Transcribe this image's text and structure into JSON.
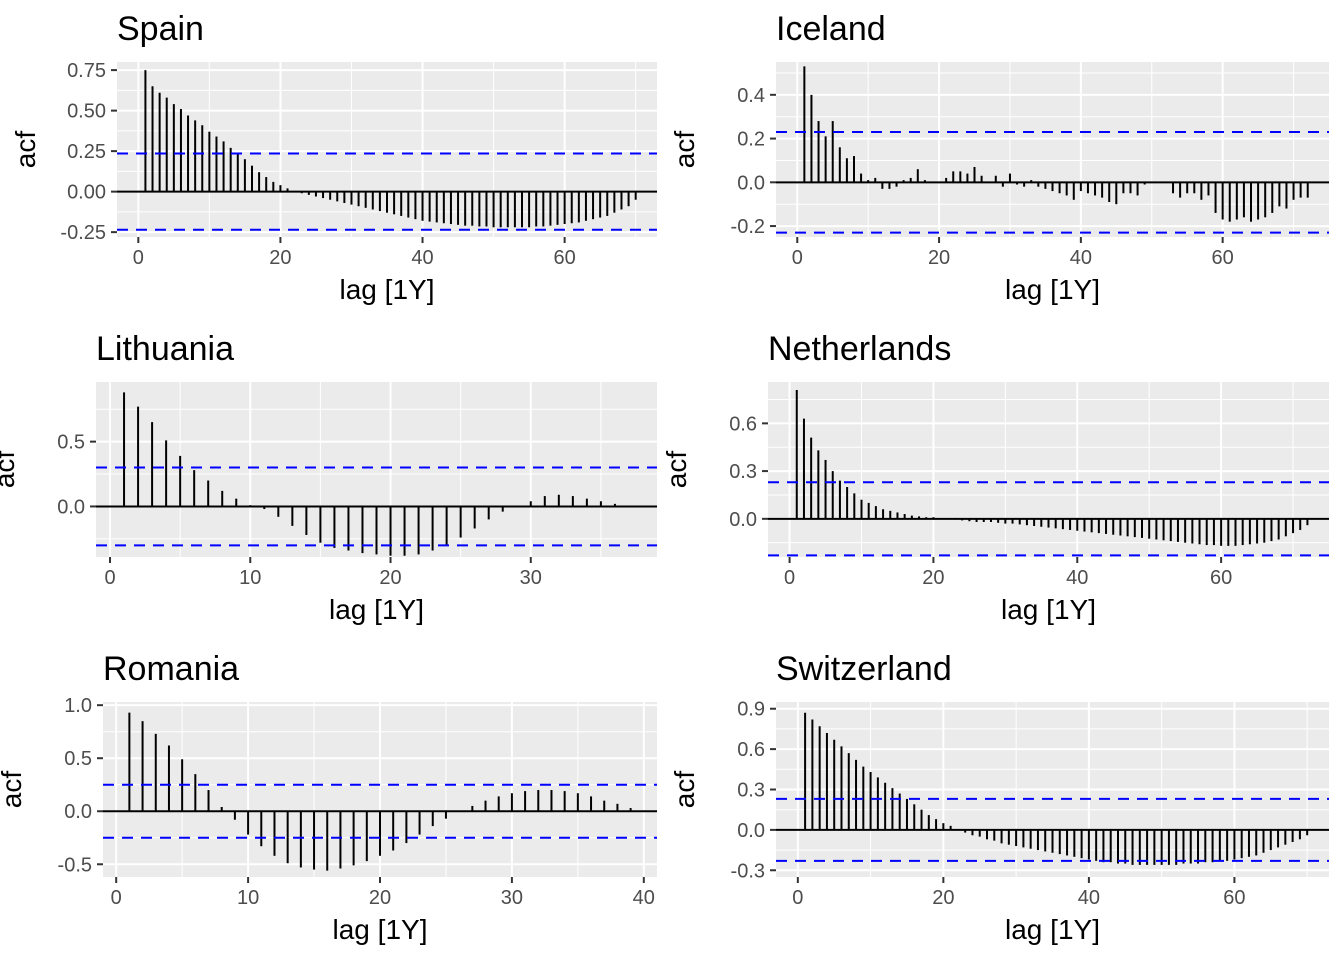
{
  "chart_data": [
    {
      "type": "bar",
      "title": "Spain",
      "xlabel": "lag [1Y]",
      "ylabel": "acf",
      "xlim": [
        -3,
        73
      ],
      "ylim": [
        -0.28,
        0.8
      ],
      "xticks": [
        0,
        20,
        40,
        60
      ],
      "yticks": [
        -0.25,
        0,
        0.25,
        0.5,
        0.75
      ],
      "ytick_labels": [
        "-0.25",
        "0.00",
        "0.25",
        "0.50",
        "0.75"
      ],
      "conf_limit": 0.235,
      "lags": [
        1,
        2,
        3,
        4,
        5,
        6,
        7,
        8,
        9,
        10,
        11,
        12,
        13,
        14,
        15,
        16,
        17,
        18,
        19,
        20,
        21,
        22,
        23,
        24,
        25,
        26,
        27,
        28,
        29,
        30,
        31,
        32,
        33,
        34,
        35,
        36,
        37,
        38,
        39,
        40,
        41,
        42,
        43,
        44,
        45,
        46,
        47,
        48,
        49,
        50,
        51,
        52,
        53,
        54,
        55,
        56,
        57,
        58,
        59,
        60,
        61,
        62,
        63,
        64,
        65,
        66,
        67,
        68,
        69,
        70
      ],
      "values": [
        0.75,
        0.65,
        0.61,
        0.58,
        0.54,
        0.51,
        0.47,
        0.44,
        0.41,
        0.37,
        0.34,
        0.31,
        0.27,
        0.24,
        0.2,
        0.16,
        0.12,
        0.09,
        0.06,
        0.04,
        0.02,
        0.0,
        -0.01,
        -0.02,
        -0.03,
        -0.04,
        -0.05,
        -0.06,
        -0.07,
        -0.08,
        -0.09,
        -0.1,
        -0.11,
        -0.12,
        -0.13,
        -0.14,
        -0.15,
        -0.16,
        -0.17,
        -0.18,
        -0.185,
        -0.19,
        -0.195,
        -0.2,
        -0.205,
        -0.21,
        -0.21,
        -0.215,
        -0.215,
        -0.22,
        -0.22,
        -0.22,
        -0.22,
        -0.22,
        -0.22,
        -0.215,
        -0.215,
        -0.21,
        -0.205,
        -0.2,
        -0.195,
        -0.19,
        -0.18,
        -0.17,
        -0.16,
        -0.15,
        -0.13,
        -0.11,
        -0.09,
        -0.05
      ]
    },
    {
      "type": "bar",
      "title": "Iceland",
      "xlabel": "lag [1Y]",
      "ylabel": "acf",
      "xlim": [
        -3,
        75
      ],
      "ylim": [
        -0.25,
        0.55
      ],
      "xticks": [
        0,
        20,
        40,
        60
      ],
      "yticks": [
        -0.2,
        0,
        0.2,
        0.4
      ],
      "ytick_labels": [
        "-0.2",
        "0.0",
        "0.2",
        "0.4"
      ],
      "conf_limit": 0.23,
      "lags": [
        1,
        2,
        3,
        4,
        5,
        6,
        7,
        8,
        9,
        10,
        11,
        12,
        13,
        14,
        15,
        16,
        17,
        18,
        19,
        20,
        21,
        22,
        23,
        24,
        25,
        26,
        27,
        28,
        29,
        30,
        31,
        32,
        33,
        34,
        35,
        36,
        37,
        38,
        39,
        40,
        41,
        42,
        43,
        44,
        45,
        46,
        47,
        48,
        49,
        50,
        51,
        52,
        53,
        54,
        55,
        56,
        57,
        58,
        59,
        60,
        61,
        62,
        63,
        64,
        65,
        66,
        67,
        68,
        69,
        70,
        71,
        72
      ],
      "values": [
        0.53,
        0.4,
        0.28,
        0.21,
        0.28,
        0.16,
        0.11,
        0.12,
        0.04,
        0.01,
        0.02,
        -0.03,
        -0.03,
        -0.02,
        0.01,
        0.02,
        0.06,
        0.01,
        0.0,
        0.0,
        0.02,
        0.05,
        0.05,
        0.04,
        0.07,
        0.03,
        0.0,
        0.03,
        -0.02,
        0.04,
        -0.01,
        -0.02,
        0.01,
        -0.02,
        -0.03,
        -0.04,
        -0.05,
        -0.06,
        -0.08,
        -0.04,
        -0.05,
        -0.06,
        -0.07,
        -0.09,
        -0.1,
        -0.05,
        -0.05,
        -0.06,
        -0.01,
        0.0,
        0.0,
        0.0,
        -0.05,
        -0.07,
        -0.05,
        -0.05,
        -0.08,
        -0.06,
        -0.14,
        -0.17,
        -0.18,
        -0.17,
        -0.16,
        -0.18,
        -0.17,
        -0.16,
        -0.14,
        -0.11,
        -0.12,
        -0.08,
        -0.07,
        -0.07
      ]
    },
    {
      "type": "bar",
      "title": "Lithuania",
      "xlabel": "lag [1Y]",
      "ylabel": "acf",
      "xlim": [
        -1,
        39
      ],
      "ylim": [
        -0.39,
        0.96
      ],
      "xticks": [
        0,
        10,
        20,
        30
      ],
      "yticks": [
        0,
        0.5
      ],
      "ytick_labels": [
        "0.0",
        "0.5"
      ],
      "conf_limit": 0.3,
      "lags": [
        1,
        2,
        3,
        4,
        5,
        6,
        7,
        8,
        9,
        10,
        11,
        12,
        13,
        14,
        15,
        16,
        17,
        18,
        19,
        20,
        21,
        22,
        23,
        24,
        25,
        26,
        27,
        28,
        29,
        30,
        31,
        32,
        33,
        34,
        35,
        36
      ],
      "values": [
        0.88,
        0.77,
        0.65,
        0.51,
        0.39,
        0.28,
        0.2,
        0.12,
        0.06,
        0.01,
        -0.02,
        -0.08,
        -0.15,
        -0.22,
        -0.28,
        -0.32,
        -0.34,
        -0.36,
        -0.37,
        -0.38,
        -0.38,
        -0.37,
        -0.34,
        -0.3,
        -0.24,
        -0.17,
        -0.1,
        -0.04,
        0.0,
        0.04,
        0.08,
        0.09,
        0.08,
        0.06,
        0.04,
        0.02
      ]
    },
    {
      "type": "bar",
      "title": "Netherlands",
      "xlabel": "lag [1Y]",
      "ylabel": "acf",
      "xlim": [
        -3,
        75
      ],
      "ylim": [
        -0.24,
        0.86
      ],
      "xticks": [
        0,
        20,
        40,
        60
      ],
      "yticks": [
        0,
        0.3,
        0.6
      ],
      "ytick_labels": [
        "0.0",
        "0.3",
        "0.6"
      ],
      "conf_limit": 0.23,
      "lags": [
        1,
        2,
        3,
        4,
        5,
        6,
        7,
        8,
        9,
        10,
        11,
        12,
        13,
        14,
        15,
        16,
        17,
        18,
        19,
        20,
        21,
        22,
        23,
        24,
        25,
        26,
        27,
        28,
        29,
        30,
        31,
        32,
        33,
        34,
        35,
        36,
        37,
        38,
        39,
        40,
        41,
        42,
        43,
        44,
        45,
        46,
        47,
        48,
        49,
        50,
        51,
        52,
        53,
        54,
        55,
        56,
        57,
        58,
        59,
        60,
        61,
        62,
        63,
        64,
        65,
        66,
        67,
        68,
        69,
        70,
        71,
        72
      ],
      "values": [
        0.81,
        0.63,
        0.51,
        0.43,
        0.37,
        0.3,
        0.24,
        0.2,
        0.16,
        0.12,
        0.1,
        0.08,
        0.06,
        0.05,
        0.04,
        0.03,
        0.02,
        0.015,
        0.01,
        0.01,
        0.005,
        0.0,
        -0.005,
        -0.01,
        -0.015,
        -0.02,
        -0.02,
        -0.02,
        -0.025,
        -0.03,
        -0.03,
        -0.035,
        -0.04,
        -0.045,
        -0.05,
        -0.055,
        -0.06,
        -0.065,
        -0.07,
        -0.075,
        -0.08,
        -0.085,
        -0.09,
        -0.095,
        -0.1,
        -0.105,
        -0.11,
        -0.115,
        -0.12,
        -0.125,
        -0.13,
        -0.135,
        -0.14,
        -0.145,
        -0.15,
        -0.155,
        -0.16,
        -0.165,
        -0.165,
        -0.17,
        -0.17,
        -0.17,
        -0.165,
        -0.16,
        -0.155,
        -0.15,
        -0.14,
        -0.13,
        -0.11,
        -0.09,
        -0.07,
        -0.04
      ]
    },
    {
      "type": "bar",
      "title": "Romania",
      "xlabel": "lag [1Y]",
      "ylabel": "acf",
      "xlim": [
        -1,
        41
      ],
      "ylim": [
        -0.62,
        1.03
      ],
      "xticks": [
        0,
        10,
        20,
        30,
        40
      ],
      "yticks": [
        -0.5,
        0,
        0.5,
        1.0
      ],
      "ytick_labels": [
        "-0.5",
        "0.0",
        "0.5",
        "1.0"
      ],
      "conf_limit": 0.25,
      "lags": [
        1,
        2,
        3,
        4,
        5,
        6,
        7,
        8,
        9,
        10,
        11,
        12,
        13,
        14,
        15,
        16,
        17,
        18,
        19,
        20,
        21,
        22,
        23,
        24,
        25,
        26,
        27,
        28,
        29,
        30,
        31,
        32,
        33,
        34,
        35,
        36,
        37,
        38,
        39
      ],
      "values": [
        0.93,
        0.85,
        0.73,
        0.62,
        0.49,
        0.35,
        0.2,
        0.04,
        -0.08,
        -0.22,
        -0.33,
        -0.42,
        -0.49,
        -0.53,
        -0.55,
        -0.56,
        -0.54,
        -0.51,
        -0.47,
        -0.42,
        -0.37,
        -0.3,
        -0.22,
        -0.14,
        -0.07,
        0.0,
        0.05,
        0.1,
        0.14,
        0.17,
        0.19,
        0.2,
        0.2,
        0.19,
        0.17,
        0.14,
        0.1,
        0.07,
        0.03
      ]
    },
    {
      "type": "bar",
      "title": "Switzerland",
      "xlabel": "lag [1Y]",
      "ylabel": "acf",
      "xlim": [
        -3,
        73
      ],
      "ylim": [
        -0.35,
        0.95
      ],
      "xticks": [
        0,
        20,
        40,
        60
      ],
      "yticks": [
        -0.3,
        0,
        0.3,
        0.6,
        0.9
      ],
      "ytick_labels": [
        "-0.3",
        "0.0",
        "0.3",
        "0.6",
        "0.9"
      ],
      "conf_limit": 0.23,
      "lags": [
        1,
        2,
        3,
        4,
        5,
        6,
        7,
        8,
        9,
        10,
        11,
        12,
        13,
        14,
        15,
        16,
        17,
        18,
        19,
        20,
        21,
        22,
        23,
        24,
        25,
        26,
        27,
        28,
        29,
        30,
        31,
        32,
        33,
        34,
        35,
        36,
        37,
        38,
        39,
        40,
        41,
        42,
        43,
        44,
        45,
        46,
        47,
        48,
        49,
        50,
        51,
        52,
        53,
        54,
        55,
        56,
        57,
        58,
        59,
        60,
        61,
        62,
        63,
        64,
        65,
        66,
        67,
        68,
        69,
        70
      ],
      "values": [
        0.87,
        0.82,
        0.77,
        0.72,
        0.67,
        0.62,
        0.57,
        0.52,
        0.47,
        0.43,
        0.39,
        0.35,
        0.31,
        0.27,
        0.23,
        0.19,
        0.15,
        0.11,
        0.08,
        0.05,
        0.03,
        0.0,
        -0.02,
        -0.04,
        -0.05,
        -0.07,
        -0.08,
        -0.1,
        -0.11,
        -0.12,
        -0.13,
        -0.14,
        -0.15,
        -0.16,
        -0.17,
        -0.18,
        -0.19,
        -0.2,
        -0.21,
        -0.22,
        -0.23,
        -0.24,
        -0.24,
        -0.25,
        -0.25,
        -0.26,
        -0.26,
        -0.26,
        -0.26,
        -0.26,
        -0.26,
        -0.26,
        -0.25,
        -0.25,
        -0.25,
        -0.24,
        -0.24,
        -0.23,
        -0.23,
        -0.22,
        -0.21,
        -0.2,
        -0.19,
        -0.17,
        -0.15,
        -0.13,
        -0.11,
        -0.09,
        -0.07,
        -0.04
      ]
    }
  ]
}
